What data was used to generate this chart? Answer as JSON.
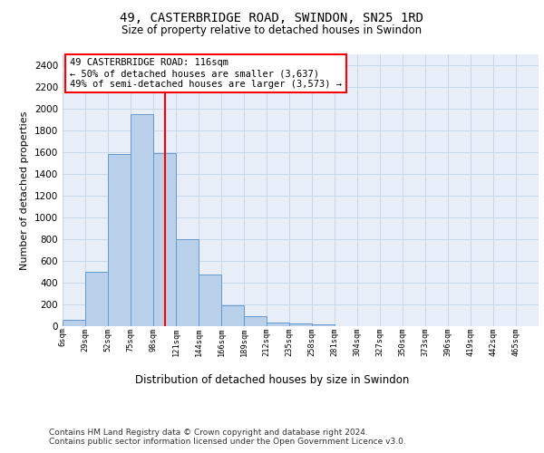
{
  "title": "49, CASTERBRIDGE ROAD, SWINDON, SN25 1RD",
  "subtitle": "Size of property relative to detached houses in Swindon",
  "xlabel": "Distribution of detached houses by size in Swindon",
  "ylabel": "Number of detached properties",
  "bar_values": [
    60,
    500,
    1580,
    1950,
    1590,
    800,
    475,
    195,
    90,
    35,
    25,
    20,
    0,
    0,
    0,
    0,
    0,
    0,
    0,
    0
  ],
  "x_labels": [
    "6sqm",
    "29sqm",
    "52sqm",
    "75sqm",
    "98sqm",
    "121sqm",
    "144sqm",
    "166sqm",
    "189sqm",
    "212sqm",
    "235sqm",
    "258sqm",
    "281sqm",
    "304sqm",
    "327sqm",
    "350sqm",
    "373sqm",
    "396sqm",
    "419sqm",
    "442sqm",
    "465sqm"
  ],
  "bar_color": "#b8d0ea",
  "bar_edge_color": "#6699cc",
  "grid_color": "#c8d8e8",
  "background_color": "#e8eef7",
  "vline_x": 4.5,
  "vline_color": "red",
  "annotation_text": "49 CASTERBRIDGE ROAD: 116sqm\n← 50% of detached houses are smaller (3,637)\n49% of semi-detached houses are larger (3,573) →",
  "annotation_box_color": "white",
  "annotation_box_edge_color": "red",
  "ylim": [
    0,
    2500
  ],
  "yticks": [
    0,
    200,
    400,
    600,
    800,
    1000,
    1200,
    1400,
    1600,
    1800,
    2000,
    2200,
    2400
  ],
  "footer_line1": "Contains HM Land Registry data © Crown copyright and database right 2024.",
  "footer_line2": "Contains public sector information licensed under the Open Government Licence v3.0."
}
